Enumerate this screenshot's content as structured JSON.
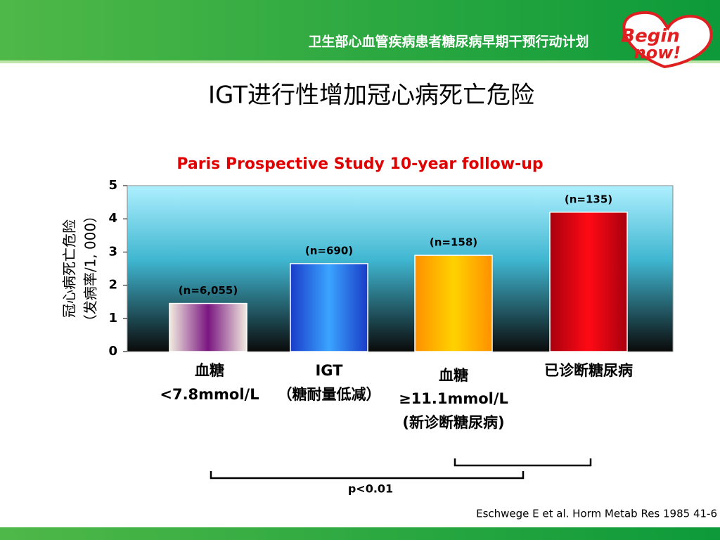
{
  "header": "卫生部心血管疾病患者糖尿病早期干预行动计划",
  "logo": [
    "Begin",
    "now!"
  ],
  "slide_title": "IGT进行性增加冠心病死亡危险",
  "chart_data": {
    "type": "bar",
    "title": "Paris Prospective Study 10-year follow-up",
    "ylabel": [
      "冠心病死亡危险",
      "（发病率/1, 000）"
    ],
    "categories": [
      [
        "血糖",
        "<7.8mmol/L"
      ],
      [
        "IGT",
        "（糖耐量低减）"
      ],
      [
        "血糖",
        "≥11.1mmol/L",
        "(新诊断糖尿病)"
      ],
      [
        "已诊断糖尿病"
      ]
    ],
    "values": [
      1.45,
      2.65,
      2.9,
      4.2
    ],
    "annotations": [
      "(n=6,055)",
      "(n=690)",
      "(n=158)",
      "(n=135)"
    ],
    "bar_gradients": [
      [
        "#f2ece0",
        "#7a1680",
        "#f2ece0"
      ],
      [
        "#1a3cc8",
        "#3ba4ff",
        "#1a3cc8"
      ],
      [
        "#ff9000",
        "#ffd200",
        "#ff9000"
      ],
      [
        "#a8000e",
        "#ff0a14",
        "#a8000e"
      ]
    ],
    "ylim": [
      0,
      5
    ],
    "yticks": [
      0,
      1,
      2,
      3,
      4,
      5
    ],
    "p_value": "p<0.01"
  },
  "citation": "Eschwege E et al. Horm Metab Res 1985 41-6"
}
